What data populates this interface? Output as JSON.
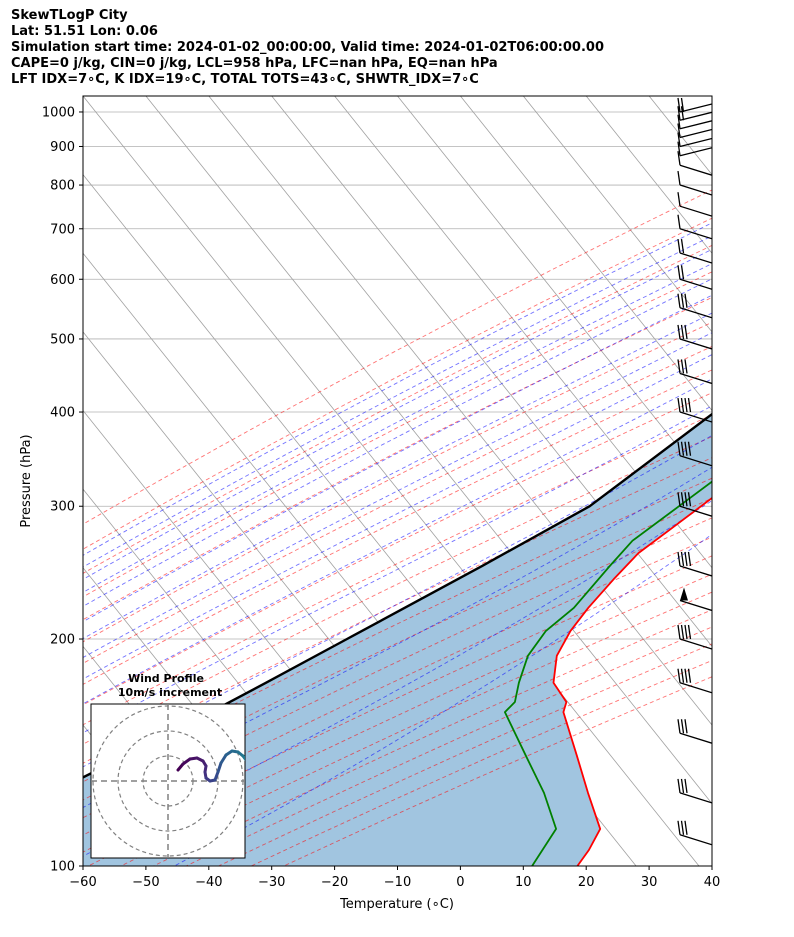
{
  "header": {
    "line1": "SkewTLogP City",
    "line2": "Lat: 51.51   Lon: 0.06",
    "line3": "Simulation start time: 2024-01-02_00:00:00, Valid time: 2024-01-02T06:00:00.00",
    "line4": "CAPE=0 j/kg, CIN=0 j/kg, LCL=958 hPa, LFC=nan hPa, EQ=nan hPa",
    "line5": "LFT IDX=7∘C, K IDX=19∘C, TOTAL TOTS=43∘C, SHWTR_IDX=7∘C"
  },
  "chart_data": {
    "type": "line",
    "title": "SkewTLogP City",
    "xlabel": "Temperature (∘C)",
    "ylabel": "Pressure (hPa)",
    "xlim": [
      -60,
      40
    ],
    "ylim": [
      1050,
      100
    ],
    "y_scale": "log",
    "x_ticks": [
      "−60",
      "−50",
      "−40",
      "−30",
      "−20",
      "−10",
      "0",
      "10",
      "20",
      "30",
      "40"
    ],
    "y_ticks": [
      "100",
      "200",
      "300",
      "400",
      "500",
      "600",
      "700",
      "800",
      "900",
      "1000"
    ],
    "grid": true,
    "colors": {
      "temperature": "#ff0000",
      "dewpoint": "#008000",
      "parcel": "#000000",
      "shade": "#a1c5e0",
      "dry_adiabat": "#ff0000",
      "moist_adiabat": "#0000ff",
      "mixing_ratio": "#800080",
      "isotherm": "#808080"
    },
    "series": [
      {
        "name": "Temperature",
        "x": [
          12.7,
          11.8,
          11.2,
          10.8,
          10.5,
          9.8,
          8.1,
          7.1,
          6.5,
          5.3,
          3.6,
          2.3,
          0.8,
          -1.2,
          -2.8,
          -4.7,
          -6.6,
          -9.4,
          -11.5,
          -12.1,
          -12.5,
          -12.4,
          -11.4,
          -8.5,
          -4.0,
          -3.2,
          4.5,
          11.0,
          17.5,
          18.4,
          18.6
        ],
        "y": [
          990,
          960,
          925,
          900,
          850,
          800,
          750,
          700,
          650,
          600,
          550,
          500,
          450,
          400,
          370,
          340,
          310,
          280,
          260,
          240,
          220,
          205,
          190,
          175,
          165,
          160,
          140,
          125,
          112,
          105,
          100
        ]
      },
      {
        "name": "Dewpoint",
        "x": [
          10.5,
          10.8,
          10.2,
          6.5,
          -0.8,
          -6.5,
          -0.8,
          5.3,
          5.6,
          4.9,
          3.7,
          2.4,
          -0.5,
          -2.1,
          -6.8,
          -7.5,
          -11.0,
          -14.0,
          -14.4,
          -14.8,
          -16.3,
          -16.0,
          -14.0,
          -12.2,
          -12.5,
          -3.6,
          4.0,
          10.5,
          11.4
        ],
        "y": [
          990,
          960,
          925,
          880,
          820,
          760,
          710,
          670,
          630,
          590,
          550,
          510,
          450,
          400,
          370,
          340,
          300,
          270,
          250,
          220,
          205,
          190,
          175,
          165,
          160,
          140,
          125,
          112,
          100
        ]
      },
      {
        "name": "Parcel",
        "x": [
          12.7,
          11.1,
          9.5,
          5.5,
          0.8,
          -4.5,
          -10.4,
          -17.3,
          -25.2,
          -34.7,
          -46.9,
          -54.2,
          -62.9,
          -74.2,
          -92.0
        ],
        "y": [
          1000,
          958,
          900,
          800,
          700,
          600,
          500,
          400,
          300,
          250,
          200,
          175,
          150,
          125,
          100
        ]
      }
    ]
  },
  "inset": {
    "title": "Wind Profile",
    "subtitle": "10m/s increment"
  }
}
